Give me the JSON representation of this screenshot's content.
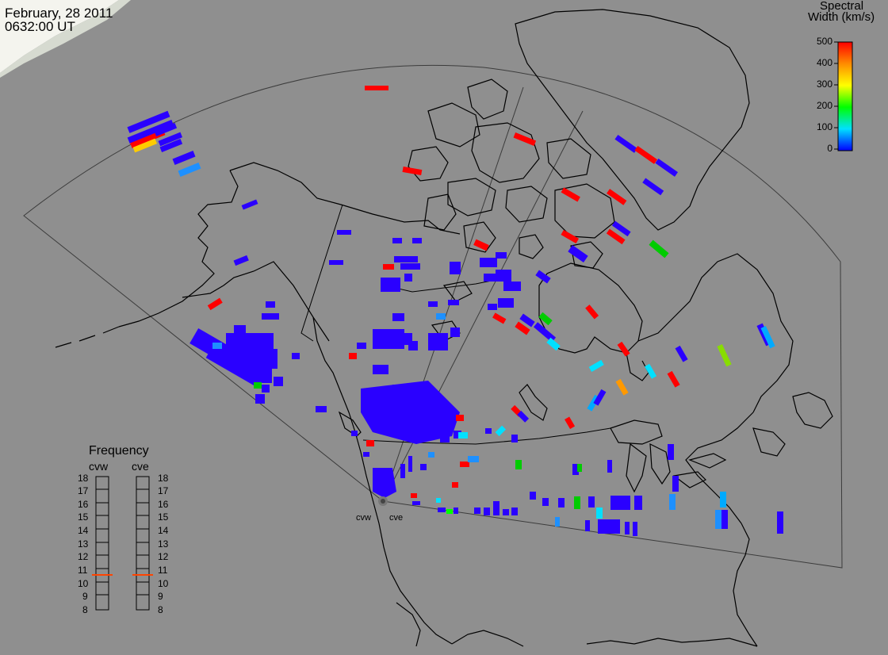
{
  "header": {
    "date": "February, 28 2011",
    "time": "0632:00 UT"
  },
  "colorbar": {
    "title_line1": "Spectral",
    "title_line2": "Width (km/s)",
    "ticks": [
      "500",
      "400",
      "300",
      "200",
      "100",
      "0"
    ],
    "colors": [
      "#ff0000",
      "#ff8c00",
      "#ffff00",
      "#00ff00",
      "#00e0ff",
      "#0000ff"
    ]
  },
  "frequency_panel": {
    "title": "Frequency",
    "left_label": "cvw",
    "right_label": "cve",
    "ticks": [
      "18",
      "17",
      "16",
      "15",
      "14",
      "13",
      "12",
      "11",
      "10",
      "9",
      "8"
    ],
    "cvw_value": 10.9,
    "cve_value": 10.9,
    "marker_color": "#ff4400"
  },
  "radars": {
    "west": "cvw",
    "east": "cve"
  },
  "colors": {
    "background": "#8f8f8f",
    "coastline": "#000000",
    "fov_outline": "#3c3c3c"
  }
}
